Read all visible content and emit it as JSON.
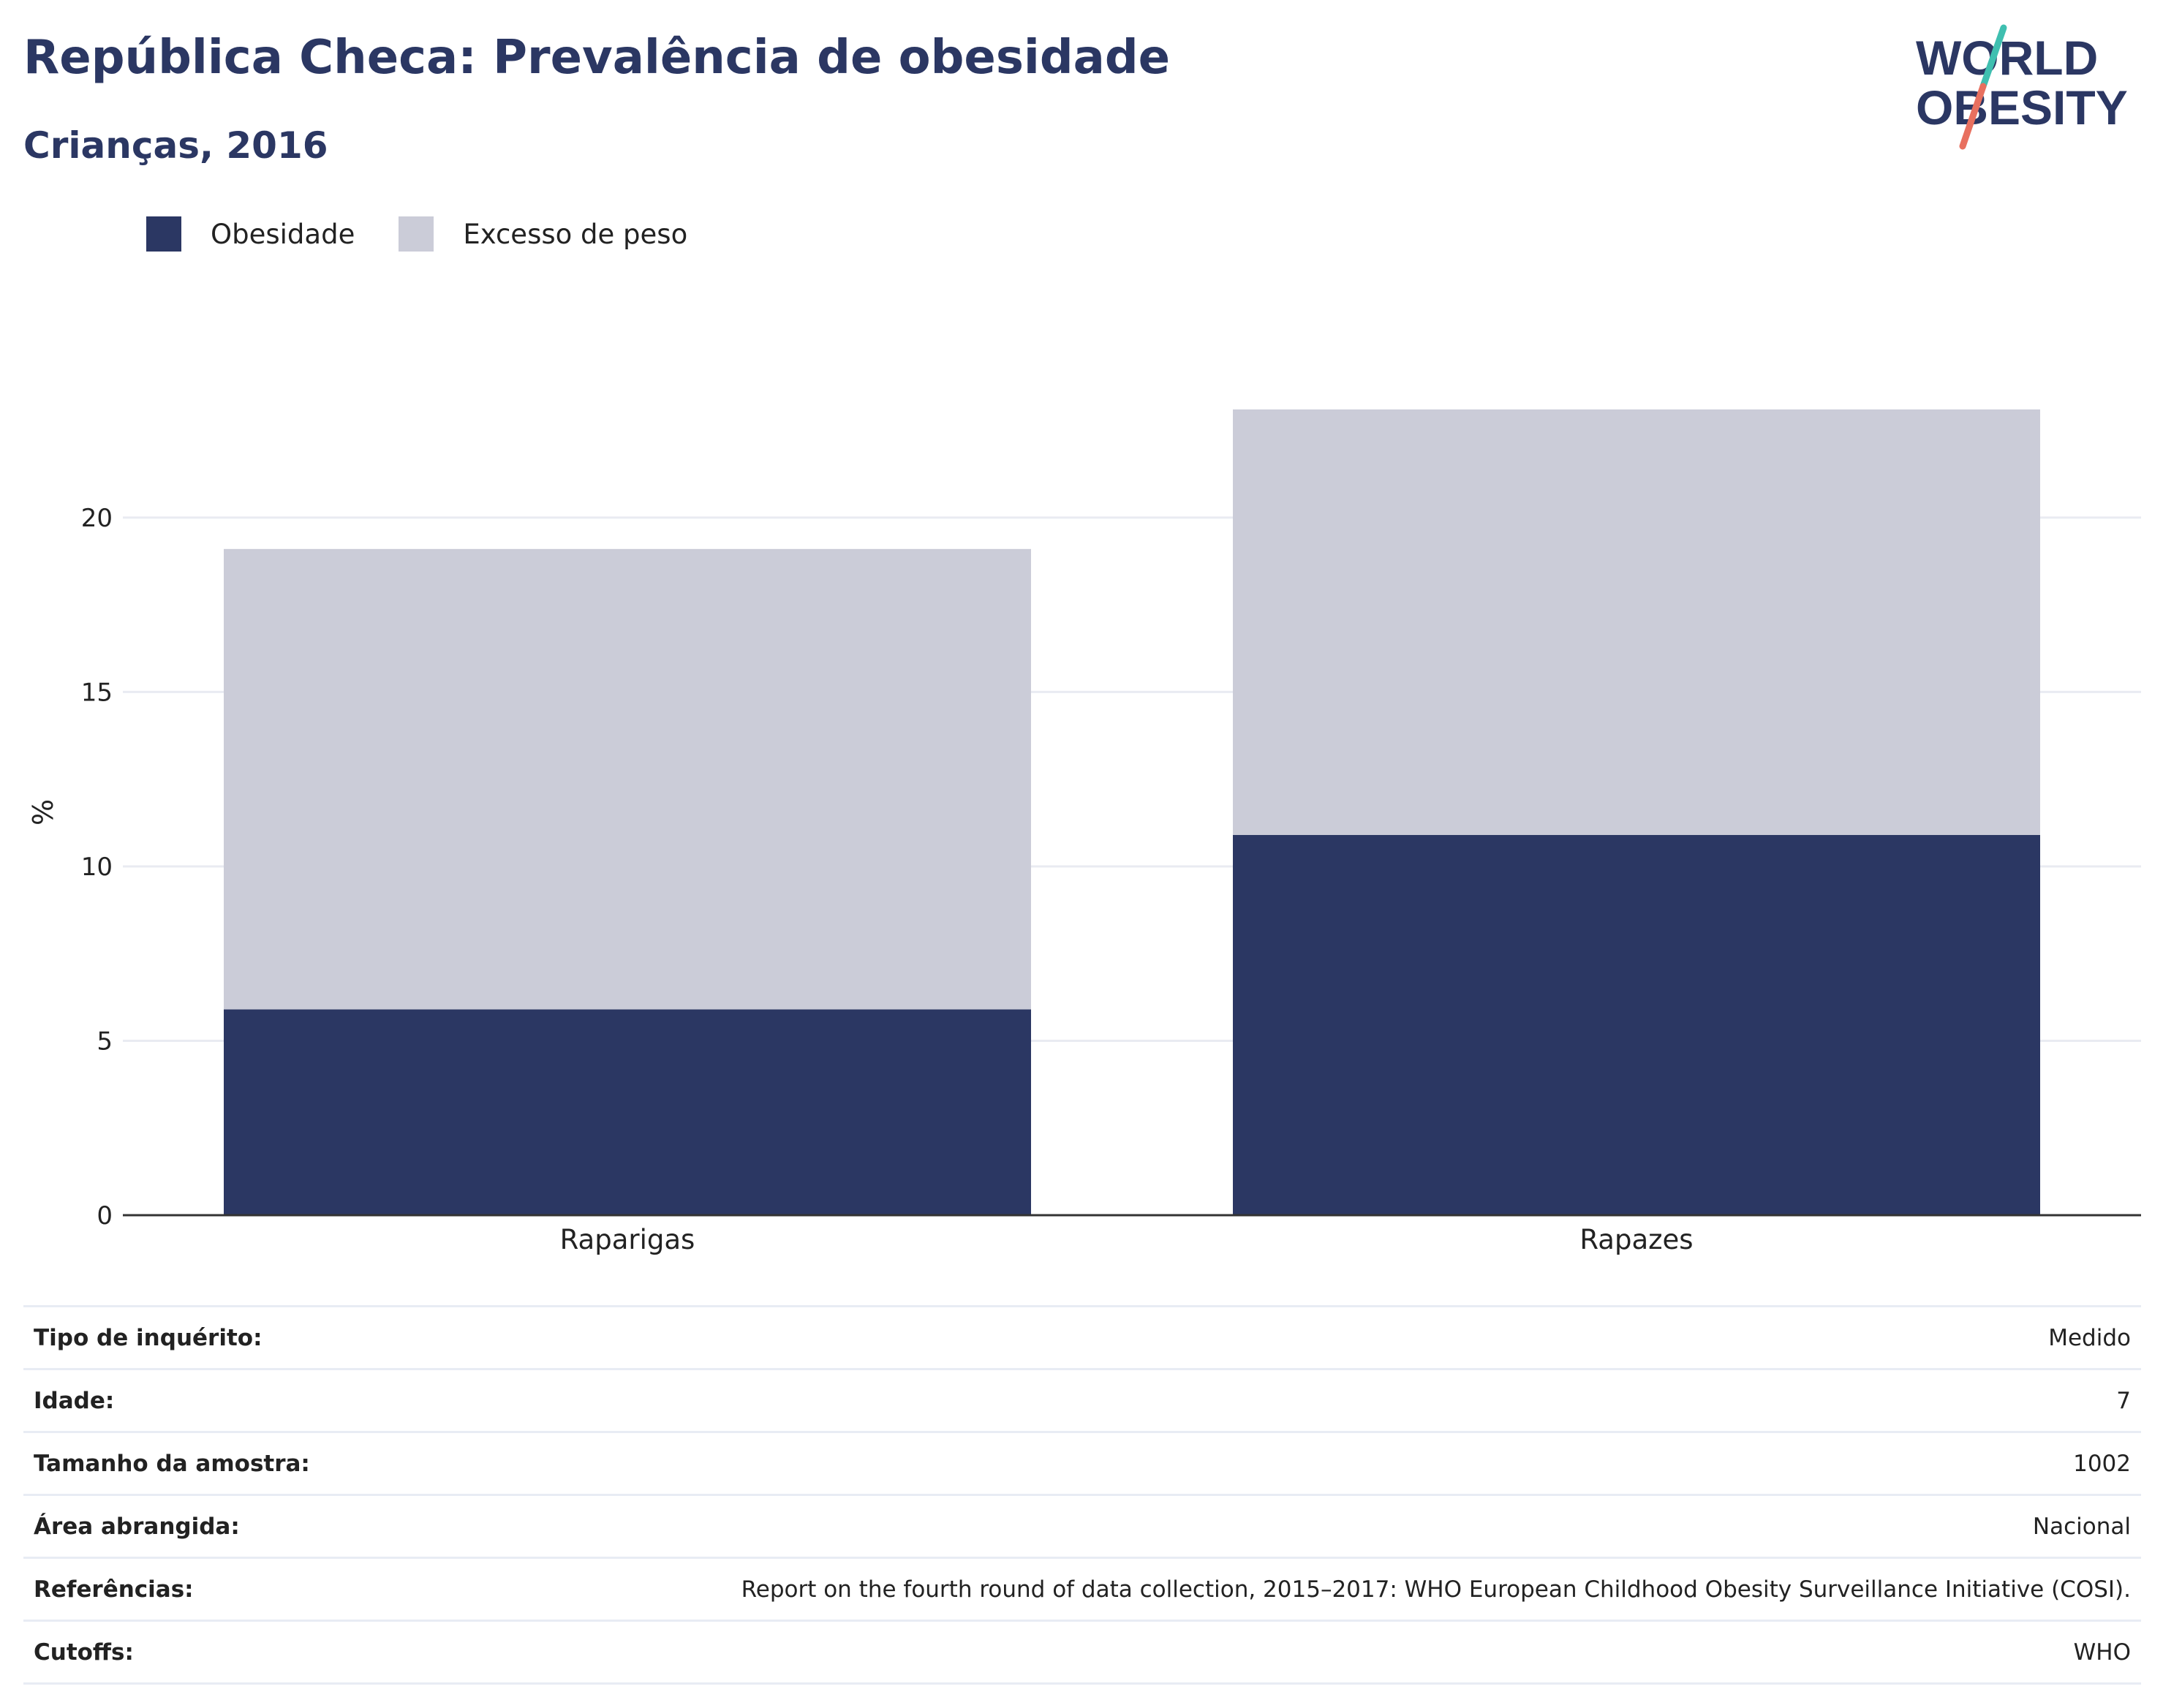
{
  "header": {
    "title": "República Checa: Prevalência de obesidade",
    "subtitle": "Crianças, 2016"
  },
  "logo": {
    "line1": "WORLD",
    "line2": "OBESITY",
    "accent_teal": "#3fbfb0",
    "accent_coral": "#e8705f",
    "text_color": "#2b3763"
  },
  "legend": [
    {
      "label": "Obesidade",
      "color": "#2b3763"
    },
    {
      "label": "Excesso de peso",
      "color": "#cbccd8"
    }
  ],
  "chart_data": {
    "type": "bar",
    "stacked": true,
    "categories": [
      "Raparigas",
      "Rapazes"
    ],
    "series": [
      {
        "name": "Obesidade",
        "values": [
          5.9,
          10.9
        ],
        "color": "#2b3763"
      },
      {
        "name": "Excesso de peso",
        "values": [
          13.2,
          12.2
        ],
        "color": "#cbccd8"
      }
    ],
    "ylabel": "%",
    "ylim": [
      0,
      23.1
    ],
    "yticks": [
      0,
      5,
      10,
      15,
      20
    ],
    "grid": true,
    "legend_position": "top-left"
  },
  "meta": [
    {
      "label": "Tipo de inquérito:",
      "value": "Medido"
    },
    {
      "label": "Idade:",
      "value": "7"
    },
    {
      "label": "Tamanho da amostra:",
      "value": "1002"
    },
    {
      "label": "Área abrangida:",
      "value": "Nacional"
    },
    {
      "label": "Referências:",
      "value": "Report on the fourth round of data collection, 2015–2017: WHO European Childhood Obesity Surveillance Initiative (COSI)."
    },
    {
      "label": "Cutoffs:",
      "value": "WHO"
    }
  ]
}
